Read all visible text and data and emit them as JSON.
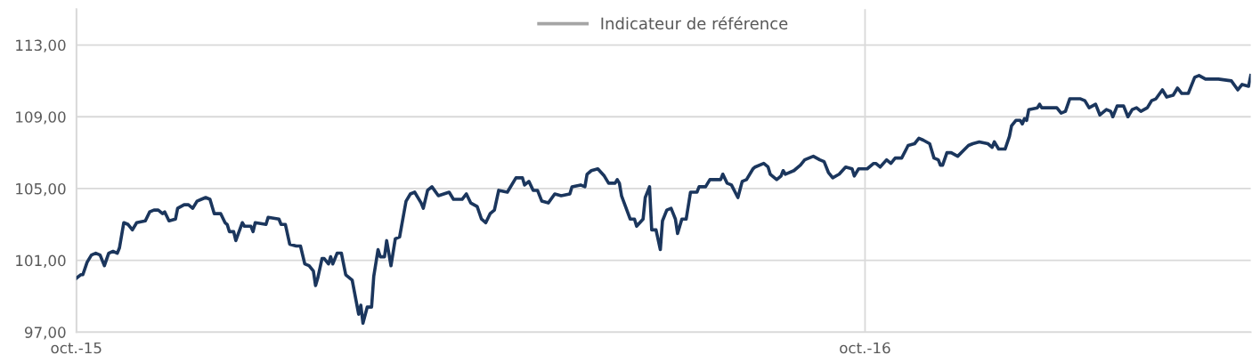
{
  "chart_data": {
    "type": "line",
    "xlim": [
      "2015-10-01",
      "2017-03-29"
    ],
    "xticks": [
      {
        "value": "2015-10-01",
        "label": "oct.-15"
      },
      {
        "value": "2016-10-01",
        "label": "oct.-16"
      }
    ],
    "ylim": [
      97,
      115
    ],
    "yticks": [
      {
        "value": 97,
        "label": "97,00"
      },
      {
        "value": 101,
        "label": "101,00"
      },
      {
        "value": 105,
        "label": "105,00"
      },
      {
        "value": 109,
        "label": "109,00"
      },
      {
        "value": 113,
        "label": "113,00"
      }
    ],
    "grid": true,
    "legend": "top",
    "marker": "none",
    "line_style": "solid",
    "series": [
      {
        "color": "#1b365d",
        "x": [
          "2015-10-01",
          "2015-10-03",
          "2015-10-04",
          "2015-10-06",
          "2015-10-08",
          "2015-10-10",
          "2015-10-12",
          "2015-10-14",
          "2015-10-16",
          "2015-10-18",
          "2015-10-20",
          "2015-10-21",
          "2015-10-23",
          "2015-10-25",
          "2015-10-27",
          "2015-10-29",
          "2015-11-02",
          "2015-11-04",
          "2015-11-06",
          "2015-11-08",
          "2015-11-10",
          "2015-11-11",
          "2015-11-13",
          "2015-11-16",
          "2015-11-17",
          "2015-11-20",
          "2015-11-22",
          "2015-11-24",
          "2015-11-26",
          "2015-11-28",
          "2015-11-30",
          "2015-12-02",
          "2015-12-04",
          "2015-12-07",
          "2015-12-09",
          "2015-12-10",
          "2015-12-11",
          "2015-12-13",
          "2015-12-14",
          "2015-12-17",
          "2015-12-18",
          "2015-12-21",
          "2015-12-22",
          "2015-12-23",
          "2015-12-28",
          "2015-12-29",
          "2016-01-03",
          "2016-01-04",
          "2016-01-06",
          "2016-01-08",
          "2016-01-11",
          "2016-01-13",
          "2016-01-15",
          "2016-01-17",
          "2016-01-19",
          "2016-01-20",
          "2016-01-21",
          "2016-01-23",
          "2016-01-24",
          "2016-01-26",
          "2016-01-27",
          "2016-01-28",
          "2016-01-30",
          "2016-02-01",
          "2016-02-03",
          "2016-02-06",
          "2016-02-09",
          "2016-02-10",
          "2016-02-11",
          "2016-02-13",
          "2016-02-15",
          "2016-02-16",
          "2016-02-18",
          "2016-02-19",
          "2016-02-21",
          "2016-02-22",
          "2016-02-24",
          "2016-02-26",
          "2016-02-28",
          "2016-03-02",
          "2016-03-04",
          "2016-03-06",
          "2016-03-09",
          "2016-03-10",
          "2016-03-12",
          "2016-03-14",
          "2016-03-17",
          "2016-03-22",
          "2016-03-24",
          "2016-03-28",
          "2016-03-30",
          "2016-04-01",
          "2016-04-04",
          "2016-04-06",
          "2016-04-08",
          "2016-04-10",
          "2016-04-12",
          "2016-04-14",
          "2016-04-18",
          "2016-04-22",
          "2016-04-25",
          "2016-04-26",
          "2016-04-28",
          "2016-04-30",
          "2016-05-02",
          "2016-05-04",
          "2016-05-07",
          "2016-05-10",
          "2016-05-13",
          "2016-05-17",
          "2016-05-18",
          "2016-05-22",
          "2016-05-24",
          "2016-05-25",
          "2016-05-27",
          "2016-05-30",
          "2016-06-02",
          "2016-06-04",
          "2016-06-07",
          "2016-06-08",
          "2016-06-09",
          "2016-06-10",
          "2016-06-14",
          "2016-06-16",
          "2016-06-17",
          "2016-06-20",
          "2016-06-21",
          "2016-06-23",
          "2016-06-24",
          "2016-06-26",
          "2016-06-28",
          "2016-06-29",
          "2016-07-01",
          "2016-07-03",
          "2016-07-05",
          "2016-07-06",
          "2016-07-08",
          "2016-07-10",
          "2016-07-12",
          "2016-07-15",
          "2016-07-16",
          "2016-07-19",
          "2016-07-21",
          "2016-07-26",
          "2016-07-27",
          "2016-07-29",
          "2016-07-31",
          "2016-08-03",
          "2016-08-05",
          "2016-08-07",
          "2016-08-10",
          "2016-08-11",
          "2016-08-15",
          "2016-08-17",
          "2016-08-18",
          "2016-08-21",
          "2016-08-23",
          "2016-08-24",
          "2016-08-25",
          "2016-08-29",
          "2016-09-01",
          "2016-09-03",
          "2016-09-05",
          "2016-09-07",
          "2016-09-10",
          "2016-09-12",
          "2016-09-14",
          "2016-09-16",
          "2016-09-19",
          "2016-09-22",
          "2016-09-25",
          "2016-09-26",
          "2016-09-28",
          "2016-10-02",
          "2016-10-05",
          "2016-10-06",
          "2016-10-08",
          "2016-10-11",
          "2016-10-13",
          "2016-10-15",
          "2016-10-18",
          "2016-10-21",
          "2016-10-24",
          "2016-10-26",
          "2016-10-28",
          "2016-10-31",
          "2016-11-02",
          "2016-11-04",
          "2016-11-05",
          "2016-11-06",
          "2016-11-08",
          "2016-11-10",
          "2016-11-13",
          "2016-11-18",
          "2016-11-20",
          "2016-11-23",
          "2016-11-27",
          "2016-11-29",
          "2016-11-30",
          "2016-12-02",
          "2016-12-05",
          "2016-12-07",
          "2016-12-08",
          "2016-12-10",
          "2016-12-12",
          "2016-12-13",
          "2016-12-14",
          "2016-12-15",
          "2016-12-16",
          "2016-12-20",
          "2016-12-21",
          "2016-12-22",
          "2016-12-25",
          "2016-12-29",
          "2016-12-31",
          "2017-01-02",
          "2017-01-04",
          "2017-01-05",
          "2017-01-09",
          "2017-01-11",
          "2017-01-13",
          "2017-01-16",
          "2017-01-18",
          "2017-01-21",
          "2017-01-23",
          "2017-01-24",
          "2017-01-26",
          "2017-01-29",
          "2017-01-31",
          "2017-02-02",
          "2017-02-04",
          "2017-02-06",
          "2017-02-09",
          "2017-02-11",
          "2017-02-13",
          "2017-02-16",
          "2017-02-17",
          "2017-02-18",
          "2017-02-21",
          "2017-02-23",
          "2017-02-25",
          "2017-02-28",
          "2017-03-03",
          "2017-03-05",
          "2017-03-08",
          "2017-03-14",
          "2017-03-20",
          "2017-03-23",
          "2017-03-25",
          "2017-03-28",
          "2017-03-29"
        ],
        "values": [
          100.0,
          100.2,
          100.2,
          100.9,
          101.3,
          101.4,
          101.3,
          100.7,
          101.4,
          101.5,
          101.4,
          101.7,
          103.1,
          103.0,
          102.7,
          103.1,
          103.2,
          103.7,
          103.8,
          103.8,
          103.6,
          103.7,
          103.2,
          103.3,
          103.9,
          104.1,
          104.1,
          103.9,
          104.3,
          104.4,
          104.5,
          104.4,
          103.6,
          103.6,
          103.1,
          103.0,
          102.6,
          102.6,
          102.1,
          103.1,
          102.9,
          102.9,
          102.6,
          103.1,
          103.0,
          103.4,
          103.3,
          103.0,
          103.0,
          101.9,
          101.8,
          101.8,
          100.8,
          100.7,
          100.4,
          99.6,
          100.0,
          101.1,
          101.1,
          100.8,
          101.2,
          100.8,
          101.4,
          101.4,
          100.2,
          99.9,
          98.0,
          98.5,
          97.5,
          98.4,
          98.4,
          100.1,
          101.6,
          101.2,
          101.2,
          102.1,
          100.7,
          102.2,
          102.3,
          104.3,
          104.7,
          104.8,
          104.2,
          103.9,
          104.9,
          105.1,
          104.6,
          104.8,
          104.4,
          104.4,
          104.7,
          104.2,
          104.0,
          103.3,
          103.1,
          103.6,
          103.8,
          104.9,
          104.8,
          105.6,
          105.6,
          105.2,
          105.4,
          104.9,
          104.9,
          104.3,
          104.2,
          104.7,
          104.6,
          104.7,
          105.1,
          105.2,
          105.1,
          105.8,
          106.0,
          106.1,
          105.7,
          105.3,
          105.3,
          105.5,
          105.3,
          104.6,
          103.3,
          103.3,
          102.9,
          103.3,
          104.5,
          105.1,
          102.7,
          102.7,
          101.6,
          103.2,
          103.8,
          103.9,
          103.3,
          102.5,
          103.3,
          103.3,
          104.8,
          104.8,
          105.1,
          105.1,
          105.5,
          105.5,
          105.8,
          105.3,
          105.2,
          104.5,
          105.4,
          105.5,
          106.1,
          106.2,
          106.4,
          106.2,
          105.8,
          105.5,
          105.7,
          106.0,
          105.8,
          106.0,
          106.3,
          106.6,
          106.7,
          106.8,
          106.6,
          106.5,
          105.9,
          105.6,
          105.8,
          106.2,
          106.1,
          105.7,
          106.1,
          106.1,
          106.4,
          106.4,
          106.2,
          106.6,
          106.4,
          106.7,
          106.7,
          107.4,
          107.5,
          107.8,
          107.7,
          107.5,
          106.7,
          106.6,
          106.3,
          106.3,
          107.0,
          107.0,
          106.8,
          107.4,
          107.5,
          107.6,
          107.5,
          107.3,
          107.6,
          107.2,
          107.2,
          107.9,
          108.5,
          108.8,
          108.8,
          108.6,
          108.9,
          108.8,
          109.4,
          109.5,
          109.7,
          109.5,
          109.5,
          109.5,
          109.2,
          109.3,
          110.0,
          110.0,
          110.0,
          109.9,
          109.5,
          109.7,
          109.1,
          109.4,
          109.3,
          109.0,
          109.6,
          109.6,
          109.0,
          109.4,
          109.5,
          109.3,
          109.5,
          109.9,
          110.0,
          110.5,
          110.3,
          110.1,
          110.2,
          110.6,
          110.3,
          110.3,
          111.2,
          111.3,
          111.1,
          111.1,
          111.0,
          110.5,
          110.8,
          110.7,
          111.3
        ]
      },
      {
        "name": "Indicateur de référence",
        "color": "#a5a5a5"
      }
    ]
  }
}
